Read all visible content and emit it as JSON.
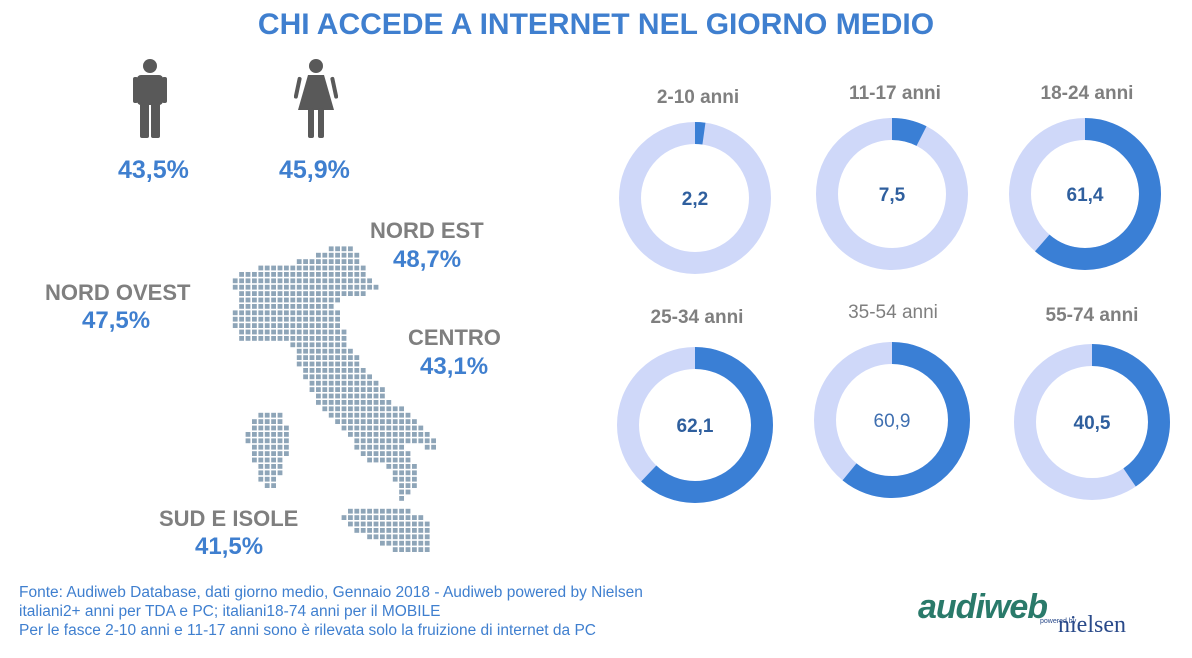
{
  "title": "CHI ACCEDE A INTERNET NEL GIORNO MEDIO",
  "gender": {
    "male_pct": "43,5%",
    "female_pct": "45,9%",
    "male_icon": "male-person-icon",
    "female_icon": "female-person-icon"
  },
  "regions": [
    {
      "label": "NORD OVEST",
      "value": "47,5%"
    },
    {
      "label": "NORD EST",
      "value": "48,7%"
    },
    {
      "label": "CENTRO",
      "value": "43,1%"
    },
    {
      "label": "SUD E ISOLE",
      "value": "41,5%"
    }
  ],
  "colors": {
    "accent": "#3f7fcf",
    "ring_filled": "#3a7fd5",
    "ring_empty": "#cfd8f9",
    "label_grey": "#7f7f7f",
    "map_dots": "#8ea5b8"
  },
  "chart_data": {
    "type": "pie",
    "variant": "donut",
    "unit": "%",
    "categories": [
      "2-10 anni",
      "11-17 anni",
      "18-24 anni",
      "25-34 anni",
      "35-54 anni",
      "55-74 anni"
    ],
    "values": [
      2.2,
      7.5,
      61.4,
      62.1,
      60.9,
      40.5
    ],
    "value_labels": [
      "2,2",
      "7,5",
      "61,4",
      "62,1",
      "60,9",
      "40,5"
    ]
  },
  "footer": {
    "line1": "Fonte: Audiweb Database, dati giorno medio, Gennaio 2018 - Audiweb powered by Nielsen",
    "line2": "italiani2+ anni per TDA e PC; italiani18-74 anni per il MOBILE",
    "line3": "Per le fasce 2-10 anni e 11-17 anni sono è rilevata solo la fruizione di internet da PC"
  },
  "logo": {
    "brand": "audiweb",
    "powered": "powered by",
    "partner": "nielsen"
  }
}
